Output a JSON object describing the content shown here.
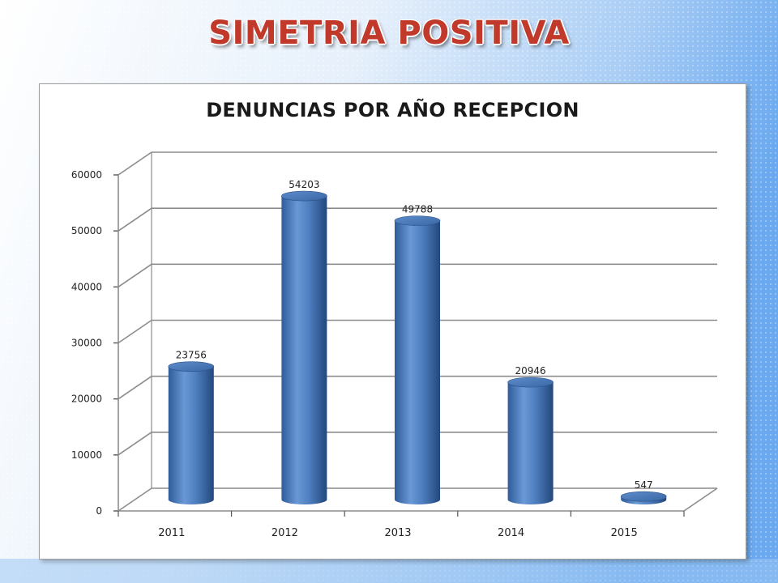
{
  "slide": {
    "title": "SIMETRIA POSITIVA"
  },
  "colors": {
    "title_red": "#c0392b",
    "bar_blue": "#4f7fc0",
    "background_blue": "#6aa9f0",
    "gridline": "#8c8c8c"
  },
  "chart_data": {
    "type": "bar",
    "title": "DENUNCIAS POR AÑO RECEPCION",
    "xlabel": "",
    "ylabel": "",
    "categories": [
      "2011",
      "2012",
      "2013",
      "2014",
      "2015"
    ],
    "values": [
      23756,
      54203,
      49788,
      20946,
      547
    ],
    "data_labels": [
      "23756",
      "54203",
      "49788",
      "20946",
      "547"
    ],
    "y_ticks": [
      "0",
      "10000",
      "20000",
      "30000",
      "40000",
      "50000",
      "60000"
    ],
    "ylim": [
      0,
      60000
    ],
    "grid": true,
    "legend": "none",
    "style": "3d-cylinder"
  }
}
